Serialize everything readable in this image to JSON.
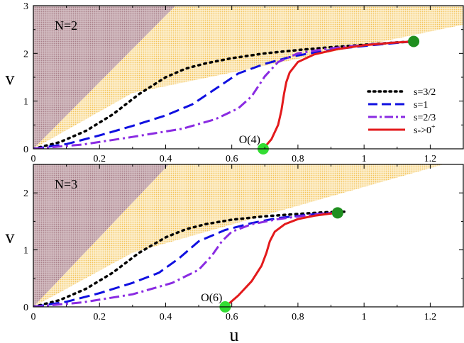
{
  "colors": {
    "region_purple": "#c9aeb4",
    "region_yellow": "#fbe1a6",
    "s_3_2": "#000000",
    "s_1": "#1010e0",
    "s_2_3": "#8a2be2",
    "s_0": "#e31a1c",
    "end_point": "#1f8f1f",
    "start_point": "#33dd33"
  },
  "chart_data": [
    {
      "type": "line",
      "panel_label": "N=2",
      "xlabel": "u",
      "ylabel": "v",
      "xlim": [
        0,
        1.3
      ],
      "ylim": [
        0,
        3
      ],
      "xticks": [
        0,
        0.2,
        0.4,
        0.6,
        0.8,
        1.0,
        1.2
      ],
      "xtick_labels": [
        "0",
        "0.2",
        "0.4",
        "0.6",
        "0.8",
        "1",
        "1.2"
      ],
      "yticks": [
        0,
        1,
        2,
        3
      ],
      "ytick_labels": [
        "0",
        "1",
        "2",
        "3"
      ],
      "regions": [
        {
          "name": "purple-region",
          "polygon": [
            [
              0,
              0
            ],
            [
              0.43,
              3
            ],
            [
              0,
              3
            ]
          ]
        },
        {
          "name": "yellow-region",
          "polygon": [
            [
              0,
              0
            ],
            [
              0.43,
              3
            ],
            [
              1.3,
              3
            ],
            [
              1.3,
              2.6
            ],
            [
              0.3,
              1.17
            ]
          ]
        }
      ],
      "series": [
        {
          "name": "s=3/2",
          "style": "dotted",
          "color_key": "s_3_2",
          "x": [
            0,
            0.08,
            0.16,
            0.24,
            0.32,
            0.4,
            0.46,
            0.52,
            0.6,
            0.7,
            0.8,
            0.9,
            1.0,
            1.08,
            1.15
          ],
          "y": [
            0,
            0.14,
            0.38,
            0.72,
            1.15,
            1.5,
            1.68,
            1.79,
            1.9,
            2.0,
            2.07,
            2.13,
            2.18,
            2.22,
            2.25
          ]
        },
        {
          "name": "s=1",
          "style": "dashed",
          "color_key": "s_1",
          "x": [
            0,
            0.1,
            0.2,
            0.3,
            0.4,
            0.48,
            0.56,
            0.62,
            0.7,
            0.78,
            0.86,
            0.94,
            1.02,
            1.1,
            1.15
          ],
          "y": [
            0,
            0.1,
            0.28,
            0.48,
            0.7,
            0.93,
            1.3,
            1.58,
            1.78,
            1.93,
            2.03,
            2.11,
            2.17,
            2.22,
            2.25
          ]
        },
        {
          "name": "s=2/3",
          "style": "dashdot",
          "color_key": "s_2_3",
          "x": [
            0,
            0.15,
            0.3,
            0.45,
            0.55,
            0.62,
            0.66,
            0.7,
            0.74,
            0.8,
            0.88,
            0.96,
            1.04,
            1.1,
            1.15
          ],
          "y": [
            0,
            0.09,
            0.25,
            0.42,
            0.62,
            0.85,
            1.1,
            1.52,
            1.82,
            2.0,
            2.09,
            2.15,
            2.2,
            2.23,
            2.25
          ]
        },
        {
          "name": "s->0+",
          "style": "solid",
          "color_key": "s_0",
          "x": [
            0.695,
            0.72,
            0.74,
            0.75,
            0.758,
            0.765,
            0.775,
            0.8,
            0.85,
            0.92,
            1.0,
            1.08,
            1.15
          ],
          "y": [
            0,
            0.2,
            0.5,
            0.8,
            1.15,
            1.4,
            1.6,
            1.82,
            1.98,
            2.09,
            2.17,
            2.22,
            2.25
          ]
        }
      ],
      "points": [
        {
          "name": "start-point",
          "x": 0.695,
          "y": 0,
          "color_key": "start_point"
        },
        {
          "name": "end-point",
          "x": 1.15,
          "y": 2.25,
          "color_key": "end_point"
        }
      ],
      "annotation": {
        "text": "O(4)",
        "x": 0.695,
        "y": 0
      },
      "legend": {
        "position": "right",
        "entries": [
          {
            "label": "s=3/2",
            "style": "dotted",
            "color_key": "s_3_2"
          },
          {
            "label": "s=1",
            "style": "dashed",
            "color_key": "s_1"
          },
          {
            "label": "s=2/3",
            "style": "dashdot",
            "color_key": "s_2_3"
          },
          {
            "label": "s->0",
            "sup": "+",
            "style": "solid",
            "color_key": "s_0"
          }
        ]
      }
    },
    {
      "type": "line",
      "panel_label": "N=3",
      "xlabel": "u",
      "ylabel": "v",
      "xlim": [
        0,
        1.3
      ],
      "ylim": [
        0,
        2.5
      ],
      "xticks": [
        0,
        0.2,
        0.4,
        0.6,
        0.8,
        1.0,
        1.2
      ],
      "xtick_labels": [
        "0",
        "0.2",
        "0.4",
        "0.6",
        "0.8",
        "1",
        "1.2"
      ],
      "yticks": [
        0,
        1,
        2
      ],
      "ytick_labels": [
        "0",
        "1",
        "2"
      ],
      "regions": [
        {
          "name": "purple-region",
          "polygon": [
            [
              0,
              0
            ],
            [
              0.41,
              2.5
            ],
            [
              0,
              2.5
            ]
          ]
        },
        {
          "name": "yellow-region",
          "polygon": [
            [
              0,
              0
            ],
            [
              0.41,
              2.5
            ],
            [
              1.24,
              2.5
            ],
            [
              0.3,
              0.95
            ]
          ]
        }
      ],
      "series": [
        {
          "name": "s=3/2",
          "style": "dotted",
          "color_key": "s_3_2",
          "x": [
            0,
            0.08,
            0.16,
            0.24,
            0.32,
            0.4,
            0.46,
            0.52,
            0.6,
            0.7,
            0.8,
            0.88,
            0.94
          ],
          "y": [
            0,
            0.12,
            0.32,
            0.6,
            0.95,
            1.22,
            1.36,
            1.45,
            1.53,
            1.59,
            1.63,
            1.66,
            1.67
          ]
        },
        {
          "name": "s=1",
          "style": "dashed",
          "color_key": "s_1",
          "x": [
            0,
            0.1,
            0.2,
            0.3,
            0.38,
            0.44,
            0.5,
            0.58,
            0.66,
            0.74,
            0.82,
            0.88,
            0.92
          ],
          "y": [
            0,
            0.09,
            0.24,
            0.42,
            0.6,
            0.85,
            1.15,
            1.35,
            1.47,
            1.56,
            1.61,
            1.64,
            1.65
          ]
        },
        {
          "name": "s=2/3",
          "style": "dashdot",
          "color_key": "s_2_3",
          "x": [
            0,
            0.15,
            0.3,
            0.42,
            0.5,
            0.54,
            0.57,
            0.6,
            0.66,
            0.74,
            0.82,
            0.88,
            0.92
          ],
          "y": [
            0,
            0.08,
            0.22,
            0.42,
            0.65,
            0.9,
            1.15,
            1.32,
            1.45,
            1.54,
            1.6,
            1.64,
            1.65
          ]
        },
        {
          "name": "s->0+",
          "style": "solid",
          "color_key": "s_0",
          "x": [
            0.58,
            0.62,
            0.66,
            0.69,
            0.705,
            0.715,
            0.73,
            0.76,
            0.8,
            0.85,
            0.89,
            0.92
          ],
          "y": [
            0,
            0.2,
            0.45,
            0.72,
            0.95,
            1.15,
            1.32,
            1.45,
            1.54,
            1.6,
            1.63,
            1.65
          ]
        }
      ],
      "points": [
        {
          "name": "start-point",
          "x": 0.58,
          "y": 0,
          "color_key": "start_point"
        },
        {
          "name": "end-point",
          "x": 0.92,
          "y": 1.65,
          "color_key": "end_point"
        }
      ],
      "annotation": {
        "text": "O(6)",
        "x": 0.58,
        "y": 0
      }
    }
  ]
}
